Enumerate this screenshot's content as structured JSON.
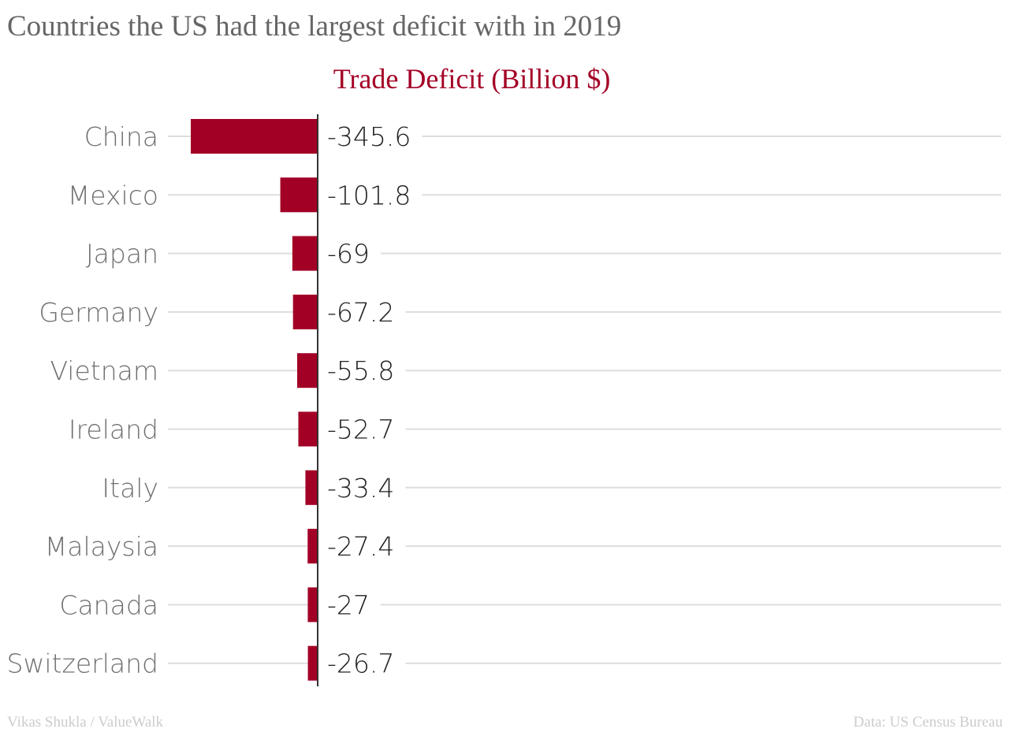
{
  "chart_data": {
    "type": "bar",
    "orientation": "horizontal",
    "title": "Countries the US had the largest deficit with in 2019",
    "subtitle": "Trade Deficit (Billion $)",
    "categories": [
      "China",
      "Mexico",
      "Japan",
      "Germany",
      "Vietnam",
      "Ireland",
      "Italy",
      "Malaysia",
      "Canada",
      "Switzerland"
    ],
    "values": [
      -345.6,
      -101.8,
      -69,
      -67.2,
      -55.8,
      -52.7,
      -33.4,
      -27.4,
      -27,
      -26.7
    ],
    "value_labels": [
      "-345.6",
      "-101.8",
      "-69",
      "-67.2",
      "-55.8",
      "-52.7",
      "-33.4",
      "-27.4",
      "-27",
      "-26.7"
    ],
    "xlabel": "",
    "ylabel": "",
    "xlim": [
      -345.6,
      0
    ],
    "grid": true,
    "legend": "none",
    "bar_color": "#a30026"
  },
  "footer": {
    "credit": "Vikas Shukla / ValueWalk",
    "source": "Data: US Census Bureau"
  }
}
